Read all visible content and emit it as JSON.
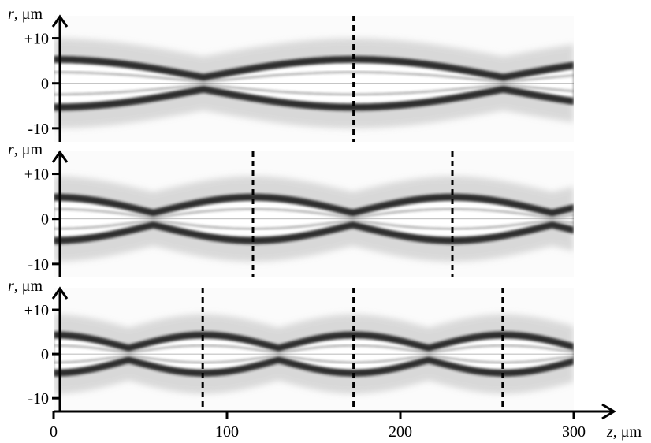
{
  "chart_data": {
    "type": "heatmap",
    "colormap": "grayscale-intensity",
    "x_axis": {
      "label_var": "z",
      "label_unit": ", μm",
      "range": [
        0,
        300
      ],
      "ticks": [
        0,
        100,
        200,
        300
      ],
      "tick_labels": [
        "0",
        "100",
        "200",
        "300"
      ]
    },
    "panels": [
      {
        "y_axis": {
          "label_var": "r",
          "label_unit": ", μm",
          "range": [
            -13,
            15
          ],
          "ticks": [
            10,
            0,
            -10
          ],
          "tick_labels": [
            "+10",
            "0",
            "-10"
          ]
        },
        "dashed_lines_z": [
          173
        ],
        "beam": {
          "period": 173,
          "phase": 0,
          "core_max": 4.5,
          "core_min": 0.5
        }
      },
      {
        "y_axis": {
          "label_var": "r",
          "label_unit": ", μm",
          "range": [
            -13,
            15
          ],
          "ticks": [
            10,
            0,
            -10
          ],
          "tick_labels": [
            "+10",
            "0",
            "-10"
          ]
        },
        "dashed_lines_z": [
          115,
          230
        ],
        "beam": {
          "period": 115,
          "phase": 0,
          "core_max": 4.0,
          "core_min": 0.5
        }
      },
      {
        "y_axis": {
          "label_var": "r",
          "label_unit": ", μm",
          "range": [
            -13,
            15
          ],
          "ticks": [
            10,
            0,
            -10
          ],
          "tick_labels": [
            "+10",
            "0",
            "-10"
          ]
        },
        "dashed_lines_z": [
          86,
          173,
          259
        ],
        "beam": {
          "period": 86.5,
          "phase": 0,
          "core_max": 3.5,
          "core_min": 0.5
        }
      }
    ]
  }
}
